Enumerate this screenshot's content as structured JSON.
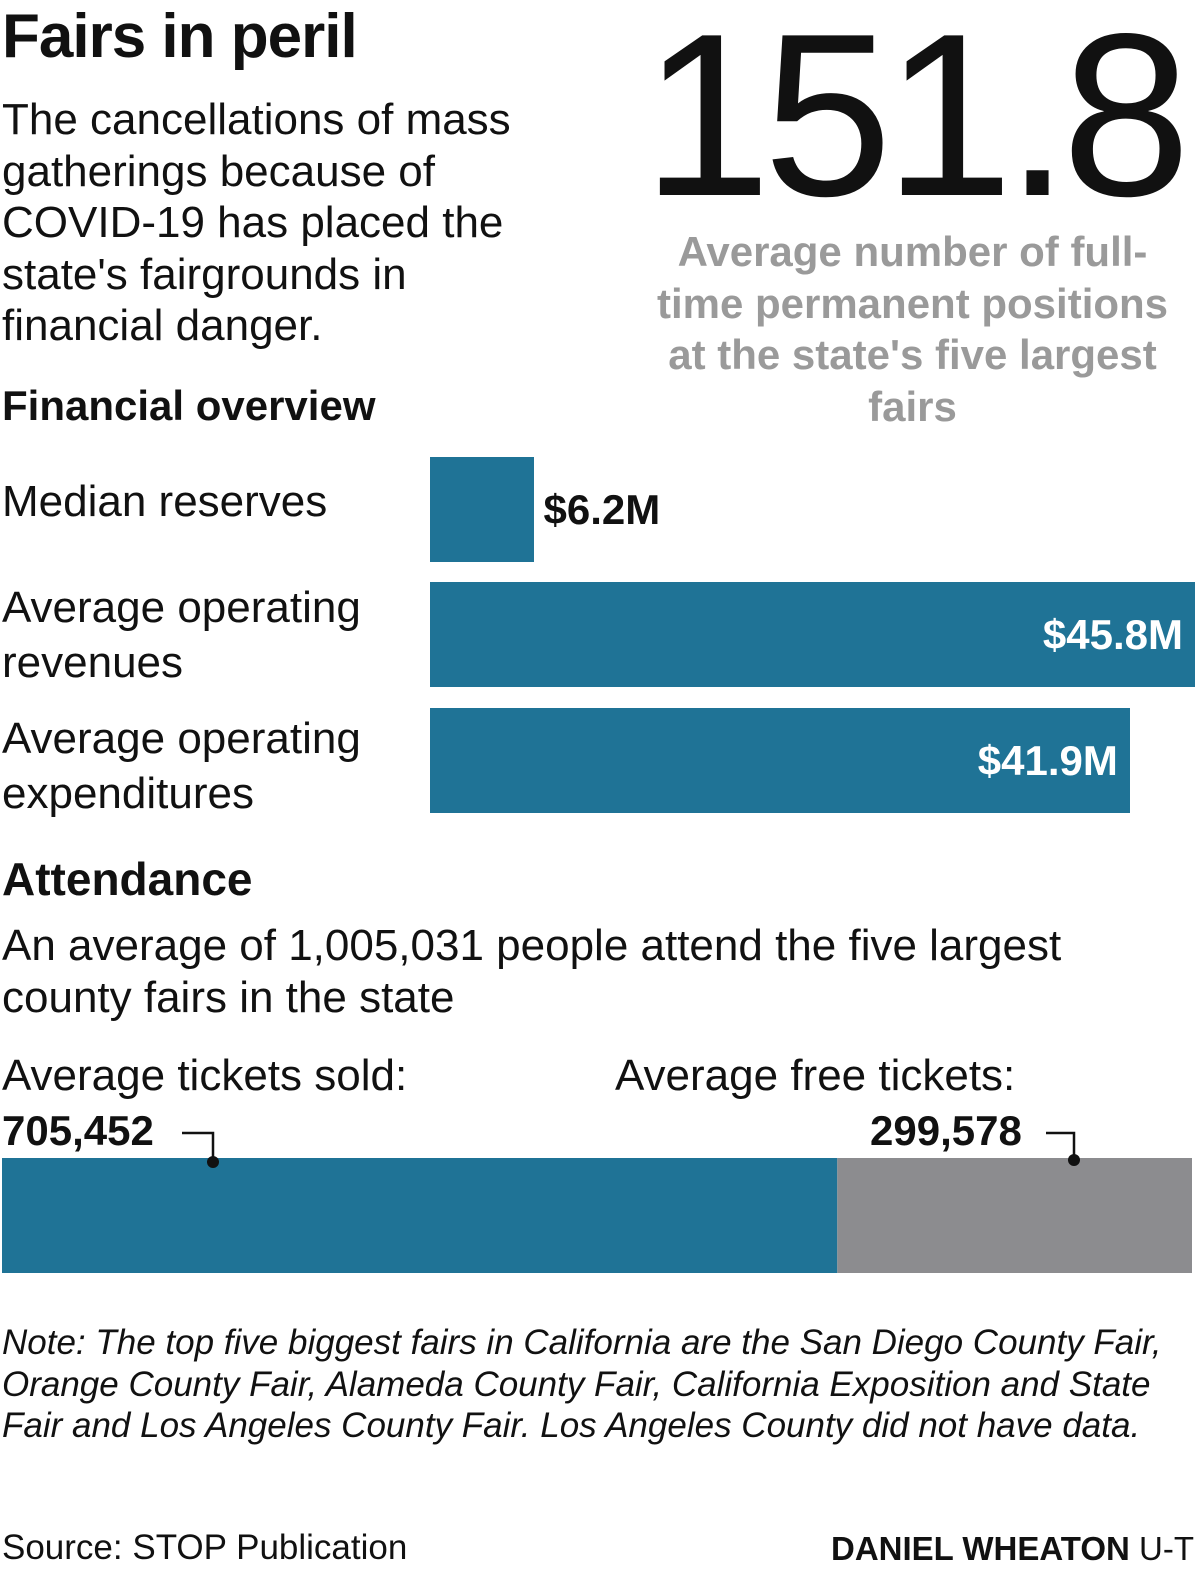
{
  "header": {
    "title": "Fairs in peril",
    "intro": "The cancellations of mass gatherings because of COVID-19 has placed the state's fairgrounds in financial danger."
  },
  "stat": {
    "value": "151.8",
    "caption": "Average number of full-time permanent positions at the state's five largest fairs"
  },
  "financial": {
    "heading": "Financial overview"
  },
  "attendance": {
    "heading": "Attendance",
    "description": "An average of 1,005,031 people attend the five largest county fairs in the state",
    "sold_label": "Average tickets sold:",
    "sold_value": "705,452",
    "free_label": "Average free tickets:",
    "free_value": "299,578"
  },
  "chart_data": [
    {
      "type": "bar",
      "orientation": "horizontal",
      "title": "Financial overview",
      "categories": [
        "Median reserves",
        "Average operating revenues",
        "Average operating expenditures"
      ],
      "values": [
        6.2,
        45.8,
        41.9
      ],
      "value_labels": [
        "$6.2M",
        "$45.8M",
        "$41.9M"
      ],
      "color": "#1f7396"
    },
    {
      "type": "bar",
      "stacked": true,
      "title": "Attendance",
      "categories": [
        "Average tickets sold",
        "Average free tickets"
      ],
      "values": [
        705452,
        299578
      ],
      "colors": [
        "#1f7396",
        "#8c8c8f"
      ]
    }
  ],
  "footer": {
    "note": "Note: The top five biggest fairs in California are the San Diego County Fair, Orange County Fair, Alameda County Fair, California Exposition and State Fair and Los Angeles County Fair. Los Angeles County did not have data.",
    "source": "Source: STOP Publication",
    "credit_name": "DANIEL WHEATON",
    "credit_org": "U-T"
  }
}
